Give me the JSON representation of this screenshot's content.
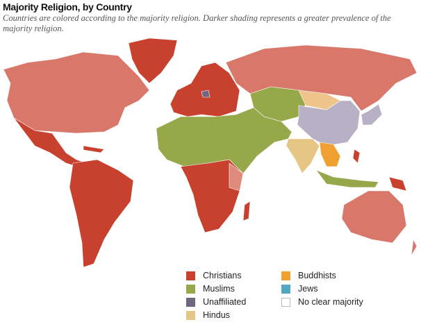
{
  "title": "Majority Religion, by Country",
  "subtitle": "Countries are colored according to the majority religion. Darker shading represents a greater prevalence of the majority religion.",
  "legend": [
    {
      "label": "Christians",
      "color": "#c8412f"
    },
    {
      "label": "Buddhists",
      "color": "#f0a030"
    },
    {
      "label": "Muslims",
      "color": "#97a84a"
    },
    {
      "label": "Jews",
      "color": "#52a8c2"
    },
    {
      "label": "Unaffiliated",
      "color": "#6f6680"
    },
    {
      "label": "No clear majority",
      "color": "#ffffff"
    },
    {
      "label": "Hindus",
      "color": "#e6c684"
    }
  ]
}
